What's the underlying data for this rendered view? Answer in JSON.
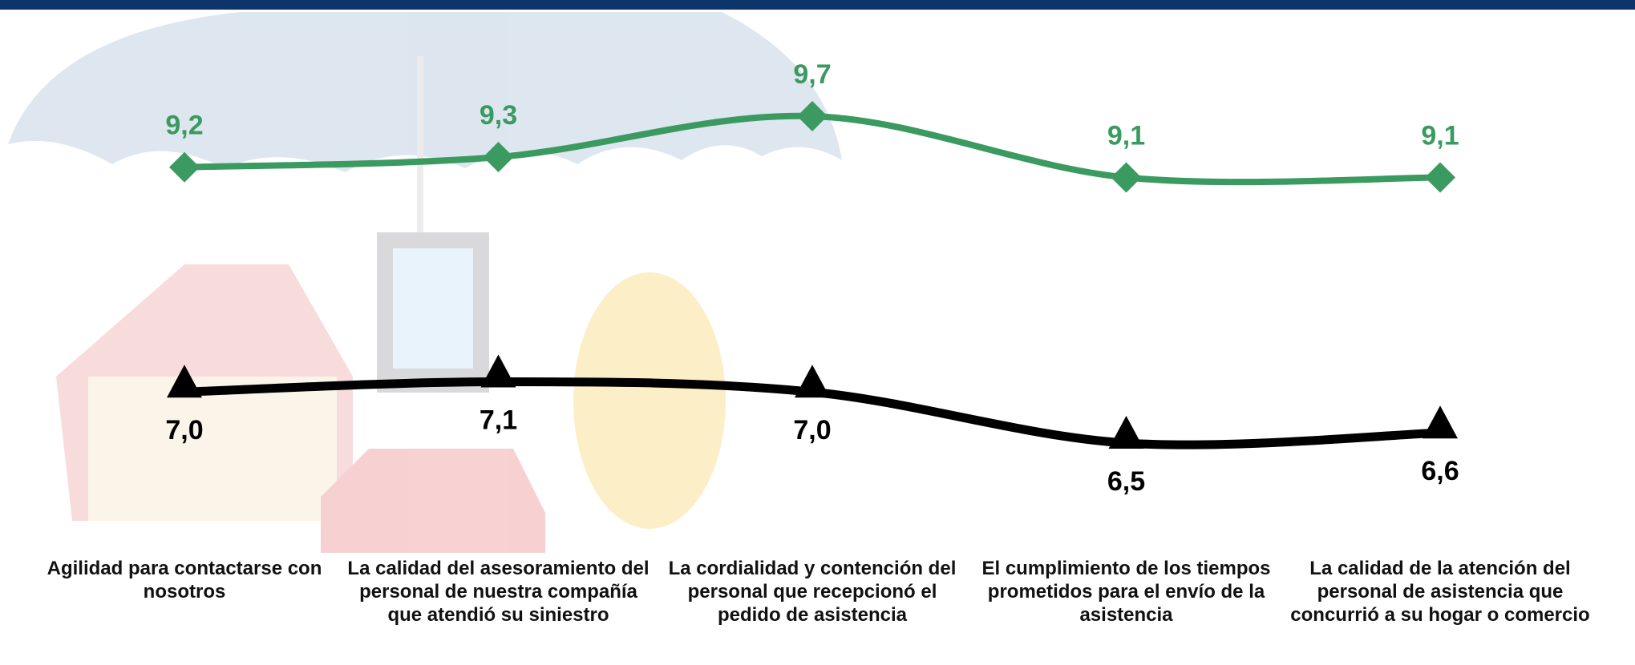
{
  "chart_data": {
    "type": "line",
    "categories": [
      "Agilidad para contactarse con nosotros",
      "La calidad del asesoramiento del personal de nuestra compañía que atendió su siniestro",
      "La cordialidad y contención del personal que recepcionó el pedido de asistencia",
      "El cumplimiento de los tiempos prometidos para el envío de la asistencia",
      "La calidad de la atención del personal de asistencia que concurrió a su hogar o comercio"
    ],
    "series": [
      {
        "color": "#3a9a5f",
        "marker": "diamond",
        "label_position": "above",
        "values": [
          9.2,
          9.3,
          9.7,
          9.1,
          9.1
        ],
        "value_labels": [
          "9,2",
          "9,3",
          "9,7",
          "9,1",
          "9,1"
        ]
      },
      {
        "color": "#000000",
        "marker": "triangle",
        "label_position": "below",
        "values": [
          7.0,
          7.1,
          7.0,
          6.5,
          6.6
        ],
        "value_labels": [
          "7,0",
          "7,1",
          "7,0",
          "6,5",
          "6,6"
        ]
      }
    ]
  }
}
